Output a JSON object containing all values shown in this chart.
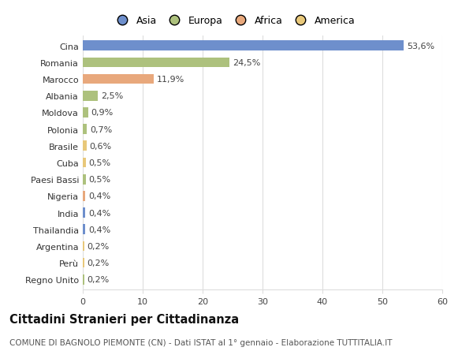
{
  "countries": [
    "Cina",
    "Romania",
    "Marocco",
    "Albania",
    "Moldova",
    "Polonia",
    "Brasile",
    "Cuba",
    "Paesi Bassi",
    "Nigeria",
    "India",
    "Thailandia",
    "Argentina",
    "Perù",
    "Regno Unito"
  ],
  "values": [
    53.6,
    24.5,
    11.9,
    2.5,
    0.9,
    0.7,
    0.6,
    0.5,
    0.5,
    0.4,
    0.4,
    0.4,
    0.2,
    0.2,
    0.2
  ],
  "labels": [
    "53,6%",
    "24,5%",
    "11,9%",
    "2,5%",
    "0,9%",
    "0,7%",
    "0,6%",
    "0,5%",
    "0,5%",
    "0,4%",
    "0,4%",
    "0,4%",
    "0,2%",
    "0,2%",
    "0,2%"
  ],
  "colors": [
    "#6e8fcc",
    "#adc17d",
    "#e8a87c",
    "#adc17d",
    "#adc17d",
    "#adc17d",
    "#e8c87a",
    "#e8c87a",
    "#adc17d",
    "#e8a87c",
    "#6e8fcc",
    "#6e8fcc",
    "#e8c87a",
    "#e8c87a",
    "#adc17d"
  ],
  "legend_labels": [
    "Asia",
    "Europa",
    "Africa",
    "America"
  ],
  "legend_colors": [
    "#6e8fcc",
    "#adc17d",
    "#e8a87c",
    "#e8c87a"
  ],
  "xlim": [
    0,
    60
  ],
  "xticks": [
    0,
    10,
    20,
    30,
    40,
    50,
    60
  ],
  "title": "Cittadini Stranieri per Cittadinanza",
  "subtitle": "COMUNE DI BAGNOLO PIEMONTE (CN) - Dati ISTAT al 1° gennaio - Elaborazione TUTTITALIA.IT",
  "background_color": "#ffffff",
  "grid_color": "#dddddd",
  "bar_height": 0.6,
  "label_fontsize": 8,
  "tick_fontsize": 8,
  "title_fontsize": 10.5,
  "subtitle_fontsize": 7.5,
  "legend_fontsize": 9
}
